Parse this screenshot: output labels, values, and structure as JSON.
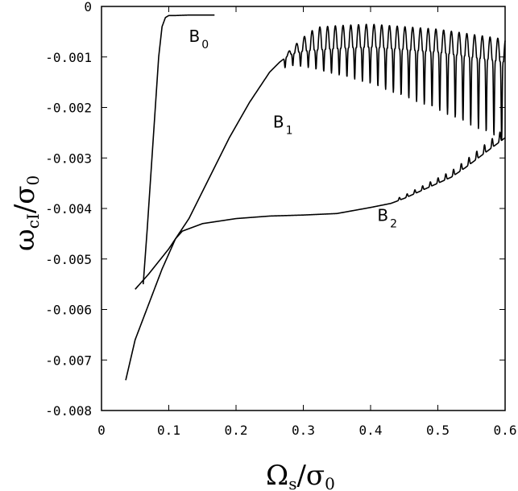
{
  "chart_data": {
    "type": "line",
    "xlabel": {
      "main": "Ω",
      "sub": "s",
      "tail": "/σ",
      "tail_sub": "0"
    },
    "ylabel": {
      "main": "ω",
      "sub": "cI",
      "tail": "/σ",
      "tail_sub": "0"
    },
    "xlim": [
      0,
      0.6
    ],
    "ylim": [
      -0.008,
      0
    ],
    "x_ticks": [
      0,
      0.1,
      0.2,
      0.3,
      0.4,
      0.5,
      0.6
    ],
    "x_tick_labels": [
      "0",
      "0.1",
      "0.2",
      "0.3",
      "0.4",
      "0.5",
      "0.6"
    ],
    "y_ticks": [
      0,
      -0.001,
      -0.002,
      -0.003,
      -0.004,
      -0.005,
      -0.006,
      -0.007,
      -0.008
    ],
    "y_tick_labels": [
      "0",
      "-0.001",
      "-0.002",
      "-0.003",
      "-0.004",
      "-0.005",
      "-0.006",
      "-0.007",
      "-0.008"
    ],
    "grid": false,
    "legend": "none",
    "series": [
      {
        "name": "B0",
        "label_main": "B",
        "label_sub": "0",
        "label_at": [
          0.13,
          -0.0007
        ],
        "x": [
          0.062,
          0.068,
          0.074,
          0.08,
          0.085,
          0.09,
          0.095,
          0.1,
          0.11,
          0.13,
          0.15,
          0.168
        ],
        "y": [
          -0.0055,
          -0.0044,
          -0.0032,
          -0.002,
          -0.001,
          -0.0004,
          -0.00022,
          -0.00018,
          -0.00018,
          -0.00017,
          -0.00017,
          -0.00017
        ]
      },
      {
        "name": "B1",
        "label_main": "B",
        "label_sub": "1",
        "label_at": [
          0.255,
          -0.0024
        ],
        "x": [
          0.05,
          0.07,
          0.1,
          0.13,
          0.16,
          0.19,
          0.22,
          0.25,
          0.265,
          0.28,
          0.3,
          0.35,
          0.4,
          0.45,
          0.5,
          0.55,
          0.6
        ],
        "y": [
          -0.0056,
          -0.0053,
          -0.0048,
          -0.0042,
          -0.0034,
          -0.0026,
          -0.0019,
          -0.0013,
          -0.0011,
          -0.00095,
          -0.00088,
          -0.00083,
          -0.0008,
          -0.00085,
          -0.0009,
          -0.001,
          -0.0011
        ],
        "oscillation_start": 0.27
      },
      {
        "name": "B2",
        "label_main": "B",
        "label_sub": "2",
        "label_at": [
          0.41,
          -0.00425
        ],
        "x": [
          0.036,
          0.05,
          0.07,
          0.09,
          0.11,
          0.12,
          0.15,
          0.2,
          0.25,
          0.3,
          0.35,
          0.4,
          0.43,
          0.45,
          0.48,
          0.5,
          0.52,
          0.54,
          0.56,
          0.58,
          0.6
        ],
        "y": [
          -0.0074,
          -0.0066,
          -0.0059,
          -0.0052,
          -0.0046,
          -0.00445,
          -0.0043,
          -0.0042,
          -0.00415,
          -0.00413,
          -0.0041,
          -0.00398,
          -0.0039,
          -0.0038,
          -0.00362,
          -0.0035,
          -0.00338,
          -0.0032,
          -0.003,
          -0.0028,
          -0.0026
        ],
        "wiggle_start": 0.44
      }
    ]
  }
}
